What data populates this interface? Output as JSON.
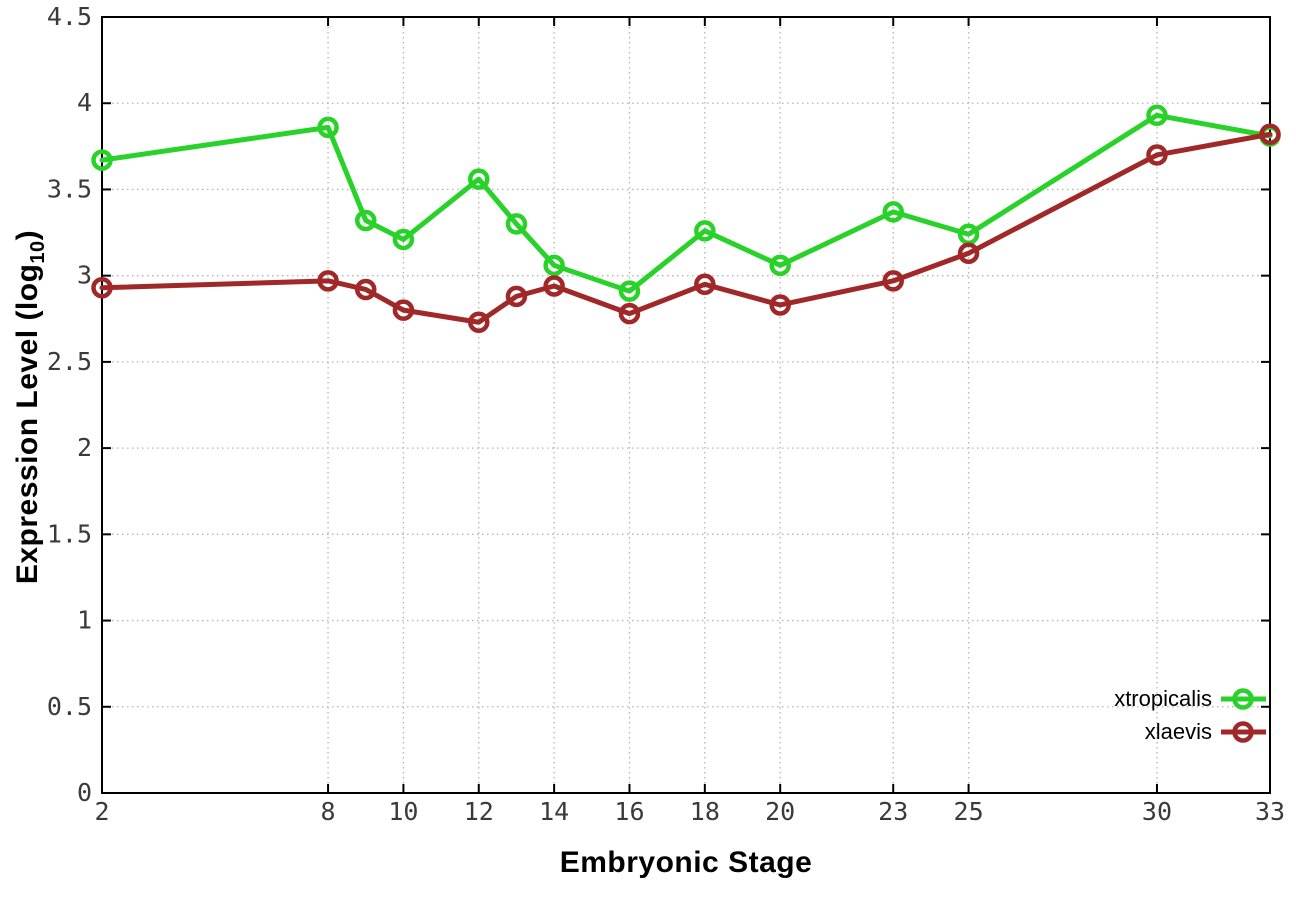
{
  "figure": {
    "background": "#ffffff",
    "xlabel": "Embryonic Stage",
    "ylabel_prefix": "Expression Level (log",
    "ylabel_sub": "10",
    "ylabel_suffix": ")"
  },
  "chart_data": {
    "type": "line",
    "title": "",
    "xlabel": "Embryonic Stage",
    "ylabel": "Expression Level (log10)",
    "x": [
      2,
      8,
      9,
      10,
      12,
      13,
      14,
      16,
      18,
      20,
      23,
      25,
      30,
      33
    ],
    "series": [
      {
        "name": "xtropicalis",
        "color": "#28d228",
        "values": [
          3.67,
          3.86,
          3.32,
          3.21,
          3.56,
          3.3,
          3.06,
          2.91,
          3.26,
          3.06,
          3.37,
          3.24,
          3.93,
          3.81
        ]
      },
      {
        "name": "xlaevis",
        "color": "#a02828",
        "values": [
          2.93,
          2.97,
          2.92,
          2.8,
          2.73,
          2.88,
          2.94,
          2.78,
          2.95,
          2.83,
          2.97,
          3.13,
          3.7,
          3.82
        ]
      }
    ],
    "xlim": [
      2,
      33
    ],
    "ylim": [
      0,
      4.5
    ],
    "x_ticks": [
      2,
      8,
      10,
      12,
      14,
      16,
      18,
      20,
      23,
      25,
      30,
      33
    ],
    "x_tick_labels": [
      "2",
      "8",
      "10",
      "12",
      "14",
      "16",
      "18",
      "20",
      "23",
      "25",
      "30",
      "33"
    ],
    "y_ticks": [
      0,
      0.5,
      1,
      1.5,
      2,
      2.5,
      3,
      3.5,
      4,
      4.5
    ],
    "y_tick_labels": [
      "0",
      "0.5",
      "1",
      "1.5",
      "2",
      "2.5",
      "3",
      "3.5",
      "4",
      "4.5"
    ],
    "grid": true,
    "legend_position": "bottom-right",
    "grid_color": "#b5b5b5",
    "border_color": "#000000",
    "tick_label_color": "#3a3a3a"
  }
}
